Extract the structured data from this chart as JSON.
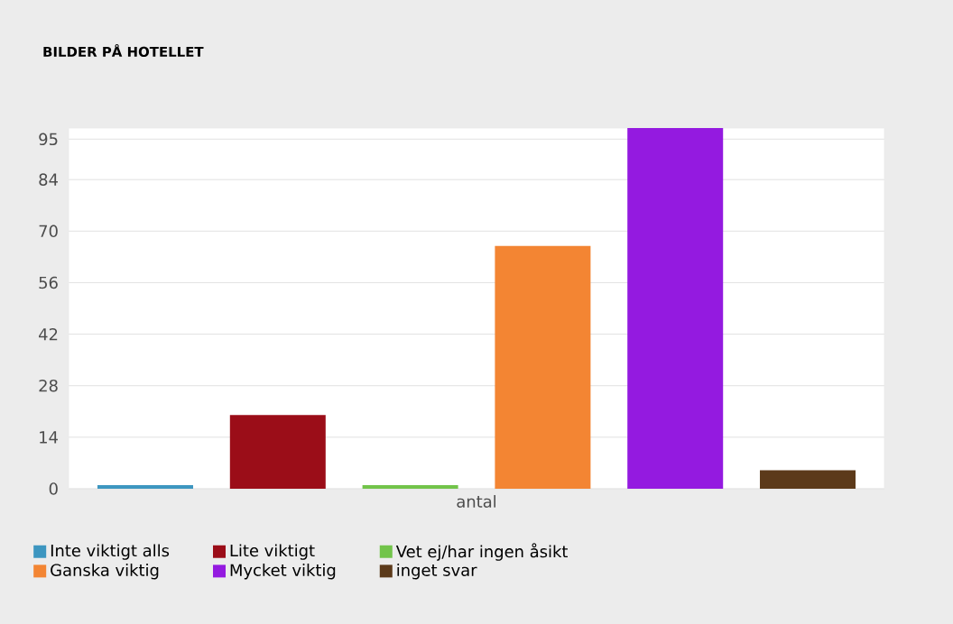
{
  "chart_data": {
    "type": "bar",
    "title": "BILDER PÅ HOTELLET",
    "categories": [
      "antal"
    ],
    "series": [
      {
        "name": "Inte viktigt alls",
        "color": "#3d96c0",
        "values": [
          1
        ]
      },
      {
        "name": "Lite viktigt",
        "color": "#9b0d18",
        "values": [
          20
        ]
      },
      {
        "name": "Vet ej/har ingen åsikt",
        "color": "#72c44a",
        "values": [
          1
        ]
      },
      {
        "name": "Ganska viktig",
        "color": "#f38533",
        "values": [
          66
        ]
      },
      {
        "name": "Mycket viktig",
        "color": "#941ae0",
        "values": [
          98
        ]
      },
      {
        "name": "inget svar",
        "color": "#5c3a1a",
        "values": [
          5
        ]
      }
    ],
    "ylim": [
      0,
      98
    ],
    "yticks": [
      0,
      14,
      28,
      42,
      56,
      70,
      84,
      95
    ],
    "grid": "y",
    "legend": "bottom"
  }
}
